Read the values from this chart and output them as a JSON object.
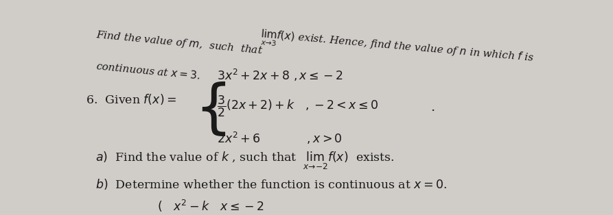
{
  "bg_color": "#d0ccc8",
  "text_color": "#1a1a1a",
  "top_line1_left": "Find the value of $m$,  such  that",
  "top_line1_right": "$\\lim_{x \\to 3} f(x)$ exist. Hence, find the value of $n$ in which $f$ is",
  "top_line2": "continuous at $x = 3$.",
  "label": "6.  Given $f(x) = $",
  "piece1": "$3x^2 + 2x + 8\\ ,x \\leq -2$",
  "piece2": "$\\dfrac{3}{2}(2x + 2) + k\\quad ,-2 < x \\leq 0$",
  "piece3": "$2x^2 + 6\\qquad\\qquad , x > 0$",
  "part_a": "$a)$  Find the value of $k$ , such that  $\\lim_{x \\to -2} f(x)$  exists.",
  "part_b": "$b)$  Determine whether the function is continuous at $x = 0$.",
  "bottom": "$( \\quad x^2 - k \\quad x \\leq -2$"
}
